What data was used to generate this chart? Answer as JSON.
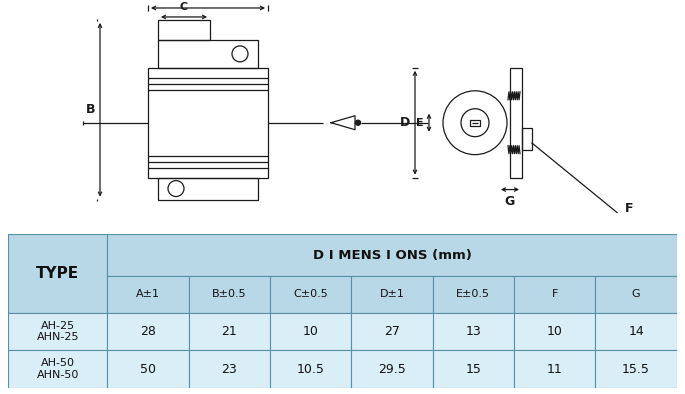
{
  "table_header_bg": "#b8d8e8",
  "table_cell_bg": "#daeef8",
  "table_outline": "#5a8fa8",
  "line_color": "#1a1a1a",
  "title_text": "D I MENS I ONS (mm)",
  "col_headers": [
    "A±1",
    "B±0.5",
    "C±0.5",
    "D±1",
    "E±0.5",
    "F",
    "G"
  ],
  "row_labels": [
    "AH-25\nAHN-25",
    "AH-50\nAHN-50"
  ],
  "row_values": [
    [
      "28",
      "21",
      "10",
      "27",
      "13",
      "10",
      "14"
    ],
    [
      "50",
      "23",
      "10.5",
      "29.5",
      "15",
      "11",
      "15.5"
    ]
  ],
  "type_label": "TYPE",
  "fig_bg": "#ffffff"
}
